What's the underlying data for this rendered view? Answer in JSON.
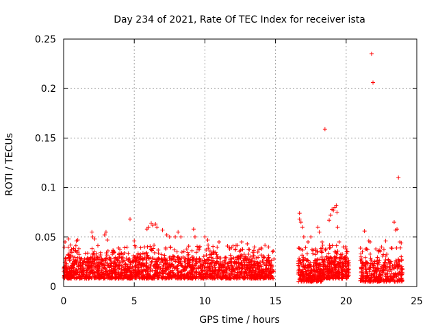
{
  "chart_data": {
    "type": "scatter",
    "title": "Day 234 of 2021, Rate Of TEC Index for receiver ista",
    "xlabel": "GPS time / hours",
    "ylabel": "ROTI / TECUs",
    "xlim": [
      0,
      25
    ],
    "ylim": [
      0,
      0.25
    ],
    "xticks": [
      0,
      5,
      10,
      15,
      20,
      25
    ],
    "xtick_labels": [
      "0",
      "5",
      "10",
      "15",
      "20",
      "25"
    ],
    "yticks": [
      0,
      0.05,
      0.1,
      0.15,
      0.2,
      0.25
    ],
    "ytick_labels": [
      "0",
      "0.05",
      "0.1",
      "0.15",
      "0.2",
      "0.25"
    ],
    "grid": true,
    "marker": "+",
    "color": "#ff0000",
    "series": [
      {
        "name": "ROTI",
        "dense_segments": [
          {
            "x_start": 0.0,
            "x_end": 14.9,
            "y_min": 0.008,
            "y_max": 0.03,
            "count": 1800
          },
          {
            "x_start": 16.6,
            "x_end": 18.3,
            "y_min": 0.005,
            "y_max": 0.028,
            "count": 260
          },
          {
            "x_start": 18.3,
            "x_end": 20.2,
            "y_min": 0.008,
            "y_max": 0.03,
            "count": 280
          },
          {
            "x_start": 21.0,
            "x_end": 24.0,
            "y_min": 0.005,
            "y_max": 0.027,
            "count": 320
          }
        ],
        "points": [
          [
            0.1,
            0.045
          ],
          [
            0.35,
            0.048
          ],
          [
            0.5,
            0.042
          ],
          [
            0.9,
            0.046
          ],
          [
            1.0,
            0.047
          ],
          [
            2.0,
            0.055
          ],
          [
            2.05,
            0.05
          ],
          [
            2.2,
            0.048
          ],
          [
            2.9,
            0.052
          ],
          [
            3.0,
            0.055
          ],
          [
            3.1,
            0.047
          ],
          [
            4.7,
            0.068
          ],
          [
            5.0,
            0.046
          ],
          [
            5.1,
            0.04
          ],
          [
            5.9,
            0.058
          ],
          [
            6.0,
            0.06
          ],
          [
            6.2,
            0.064
          ],
          [
            6.3,
            0.062
          ],
          [
            6.5,
            0.063
          ],
          [
            6.6,
            0.06
          ],
          [
            7.0,
            0.057
          ],
          [
            7.3,
            0.052
          ],
          [
            7.5,
            0.05
          ],
          [
            7.9,
            0.05
          ],
          [
            8.1,
            0.055
          ],
          [
            8.3,
            0.05
          ],
          [
            9.2,
            0.058
          ],
          [
            9.3,
            0.05
          ],
          [
            10.0,
            0.05
          ],
          [
            10.2,
            0.047
          ],
          [
            11.0,
            0.045
          ],
          [
            12.6,
            0.045
          ],
          [
            13.0,
            0.043
          ],
          [
            13.5,
            0.04
          ],
          [
            14.0,
            0.038
          ],
          [
            14.5,
            0.04
          ],
          [
            14.8,
            0.035
          ],
          [
            16.7,
            0.074
          ],
          [
            16.7,
            0.068
          ],
          [
            16.8,
            0.065
          ],
          [
            16.9,
            0.06
          ],
          [
            17.0,
            0.05
          ],
          [
            17.3,
            0.045
          ],
          [
            17.5,
            0.05
          ],
          [
            18.0,
            0.06
          ],
          [
            18.1,
            0.055
          ],
          [
            18.3,
            0.045
          ],
          [
            18.5,
            0.159
          ],
          [
            18.8,
            0.067
          ],
          [
            18.9,
            0.072
          ],
          [
            19.0,
            0.078
          ],
          [
            19.1,
            0.077
          ],
          [
            19.2,
            0.08
          ],
          [
            19.3,
            0.082
          ],
          [
            19.35,
            0.075
          ],
          [
            19.4,
            0.06
          ],
          [
            19.5,
            0.045
          ],
          [
            19.8,
            0.04
          ],
          [
            20.0,
            0.038
          ],
          [
            20.1,
            0.035
          ],
          [
            21.3,
            0.056
          ],
          [
            21.6,
            0.046
          ],
          [
            21.7,
            0.045
          ],
          [
            21.8,
            0.235
          ],
          [
            21.9,
            0.206
          ],
          [
            22.1,
            0.038
          ],
          [
            22.3,
            0.035
          ],
          [
            22.5,
            0.04
          ],
          [
            22.8,
            0.046
          ],
          [
            23.4,
            0.065
          ],
          [
            23.5,
            0.057
          ],
          [
            23.6,
            0.058
          ],
          [
            23.7,
            0.11
          ],
          [
            23.8,
            0.045
          ],
          [
            23.9,
            0.044
          ]
        ]
      }
    ]
  }
}
